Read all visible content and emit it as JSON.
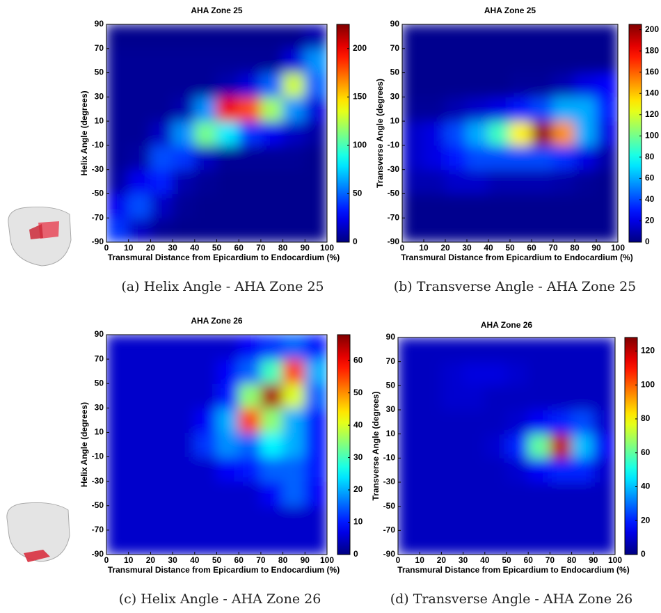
{
  "chart_data": [
    {
      "type": "heatmap",
      "title": "AHA Zone 25",
      "x_label": "Transmural Distance from Epicardium to Endocardium (%)",
      "y_label": "Helix Angle (degrees)",
      "caption": "(a)  Helix Angle - AHA Zone 25",
      "x": [
        5,
        15,
        25,
        35,
        45,
        55,
        65,
        75,
        85,
        95
      ],
      "y": [
        -80,
        -60,
        -40,
        -20,
        0,
        20,
        40,
        60,
        80
      ],
      "z": [
        [
          40,
          15,
          5,
          3,
          3,
          3,
          3,
          3,
          3,
          3
        ],
        [
          25,
          45,
          15,
          5,
          3,
          3,
          3,
          3,
          3,
          3
        ],
        [
          8,
          25,
          35,
          10,
          5,
          3,
          3,
          3,
          3,
          3
        ],
        [
          5,
          8,
          45,
          40,
          15,
          5,
          5,
          5,
          5,
          3
        ],
        [
          5,
          5,
          15,
          60,
          110,
          80,
          40,
          25,
          15,
          8
        ],
        [
          5,
          5,
          5,
          10,
          60,
          200,
          180,
          120,
          60,
          20
        ],
        [
          5,
          5,
          5,
          5,
          5,
          10,
          20,
          50,
          130,
          50
        ],
        [
          5,
          5,
          5,
          5,
          5,
          5,
          5,
          5,
          20,
          60
        ],
        [
          3,
          3,
          3,
          3,
          3,
          3,
          3,
          3,
          3,
          10
        ]
      ],
      "xlim": [
        0,
        100
      ],
      "xticks": [
        0,
        10,
        20,
        30,
        40,
        50,
        60,
        70,
        80,
        90,
        100
      ],
      "ylim": [
        -90,
        90
      ],
      "yticks": [
        -90,
        -70,
        -50,
        -30,
        -10,
        10,
        30,
        50,
        70,
        90
      ],
      "clim": [
        0,
        225
      ],
      "cticks": [
        0,
        50,
        100,
        150,
        200
      ],
      "colormap": "jet"
    },
    {
      "type": "heatmap",
      "title": "AHA Zone 25",
      "x_label": "Transmural Distance from Epicardium to Endocardium (%)",
      "y_label": "Transverse Angle (degrees)",
      "caption": "(b)  Transverse Angle - AHA Zone 25",
      "x": [
        5,
        15,
        25,
        35,
        45,
        55,
        65,
        75,
        85,
        95
      ],
      "y": [
        -80,
        -60,
        -40,
        -20,
        0,
        20,
        40,
        60,
        80
      ],
      "z": [
        [
          3,
          3,
          3,
          3,
          3,
          3,
          3,
          3,
          3,
          3
        ],
        [
          3,
          3,
          3,
          3,
          3,
          3,
          3,
          3,
          3,
          3
        ],
        [
          10,
          10,
          15,
          15,
          10,
          10,
          10,
          8,
          5,
          3
        ],
        [
          15,
          20,
          30,
          40,
          40,
          40,
          40,
          35,
          20,
          8
        ],
        [
          15,
          20,
          40,
          60,
          90,
          130,
          200,
          150,
          60,
          20
        ],
        [
          5,
          5,
          10,
          15,
          20,
          30,
          40,
          60,
          60,
          30
        ],
        [
          3,
          3,
          3,
          3,
          3,
          5,
          5,
          10,
          20,
          25
        ],
        [
          3,
          3,
          3,
          3,
          3,
          3,
          3,
          3,
          3,
          3
        ],
        [
          3,
          3,
          3,
          3,
          3,
          3,
          3,
          3,
          3,
          3
        ]
      ],
      "xlim": [
        0,
        100
      ],
      "xticks": [
        0,
        10,
        20,
        30,
        40,
        50,
        60,
        70,
        80,
        90,
        100
      ],
      "ylim": [
        -90,
        90
      ],
      "yticks": [
        -90,
        -70,
        -50,
        -30,
        -10,
        10,
        30,
        50,
        70,
        90
      ],
      "clim": [
        0,
        205
      ],
      "cticks": [
        0,
        20,
        40,
        60,
        80,
        100,
        120,
        140,
        160,
        180,
        200
      ],
      "colormap": "jet"
    },
    {
      "type": "heatmap",
      "title": "AHA Zone 26",
      "x_label": "Transmural Distance from Epicardium to Endocardium (%)",
      "y_label": "Helix Angle (degrees)",
      "caption": "(c)  Helix Angle - AHA Zone 26",
      "x": [
        5,
        15,
        25,
        35,
        45,
        55,
        65,
        75,
        85,
        95
      ],
      "y": [
        -80,
        -60,
        -40,
        -20,
        0,
        20,
        40,
        60,
        80
      ],
      "z": [
        [
          5,
          5,
          5,
          5,
          5,
          5,
          5,
          5,
          5,
          5
        ],
        [
          5,
          5,
          5,
          5,
          5,
          5,
          5,
          5,
          5,
          5
        ],
        [
          5,
          5,
          5,
          5,
          5,
          5,
          5,
          8,
          15,
          8
        ],
        [
          5,
          5,
          5,
          5,
          5,
          8,
          10,
          15,
          15,
          10
        ],
        [
          5,
          5,
          5,
          5,
          12,
          18,
          15,
          25,
          20,
          10
        ],
        [
          5,
          5,
          5,
          5,
          8,
          20,
          55,
          35,
          20,
          10
        ],
        [
          5,
          5,
          5,
          5,
          5,
          10,
          35,
          65,
          40,
          15
        ],
        [
          5,
          5,
          5,
          5,
          5,
          8,
          15,
          30,
          55,
          20
        ],
        [
          5,
          5,
          5,
          5,
          5,
          5,
          8,
          12,
          15,
          10
        ]
      ],
      "xlim": [
        0,
        100
      ],
      "xticks": [
        0,
        10,
        20,
        30,
        40,
        50,
        60,
        70,
        80,
        90,
        100
      ],
      "ylim": [
        -90,
        90
      ],
      "yticks": [
        -90,
        -70,
        -50,
        -30,
        -10,
        10,
        30,
        50,
        70,
        90
      ],
      "clim": [
        0,
        68
      ],
      "cticks": [
        0,
        10,
        20,
        30,
        40,
        50,
        60
      ],
      "colormap": "jet"
    },
    {
      "type": "heatmap",
      "title": "AHA Zone 26",
      "x_label": "Transmural Distance from Epicardium to Endocardium (%)",
      "y_label": "Transverse Angle (degrees)",
      "caption": "(d)  Transverse Angle - AHA Zone 26",
      "x": [
        5,
        15,
        25,
        35,
        45,
        55,
        65,
        75,
        85,
        95
      ],
      "y": [
        -80,
        -60,
        -40,
        -20,
        0,
        20,
        40,
        60,
        80
      ],
      "z": [
        [
          8,
          8,
          8,
          8,
          8,
          8,
          8,
          8,
          8,
          8
        ],
        [
          8,
          8,
          8,
          8,
          8,
          8,
          8,
          8,
          8,
          8
        ],
        [
          8,
          8,
          8,
          8,
          8,
          8,
          8,
          8,
          8,
          8
        ],
        [
          8,
          8,
          8,
          8,
          8,
          10,
          15,
          20,
          20,
          10
        ],
        [
          8,
          8,
          8,
          8,
          10,
          20,
          60,
          120,
          40,
          15
        ],
        [
          8,
          8,
          8,
          8,
          8,
          10,
          15,
          20,
          25,
          10
        ],
        [
          8,
          8,
          10,
          10,
          8,
          8,
          8,
          8,
          8,
          8
        ],
        [
          8,
          8,
          10,
          12,
          12,
          10,
          8,
          8,
          8,
          8
        ],
        [
          8,
          8,
          8,
          8,
          8,
          8,
          8,
          8,
          8,
          8
        ]
      ],
      "xlim": [
        0,
        100
      ],
      "xticks": [
        0,
        10,
        20,
        30,
        40,
        50,
        60,
        70,
        80,
        90,
        100
      ],
      "ylim": [
        -90,
        90
      ],
      "yticks": [
        -90,
        -70,
        -50,
        -30,
        -10,
        10,
        30,
        50,
        70,
        90
      ],
      "clim": [
        0,
        128
      ],
      "cticks": [
        0,
        20,
        40,
        60,
        80,
        100,
        120
      ],
      "colormap": "jet"
    }
  ]
}
